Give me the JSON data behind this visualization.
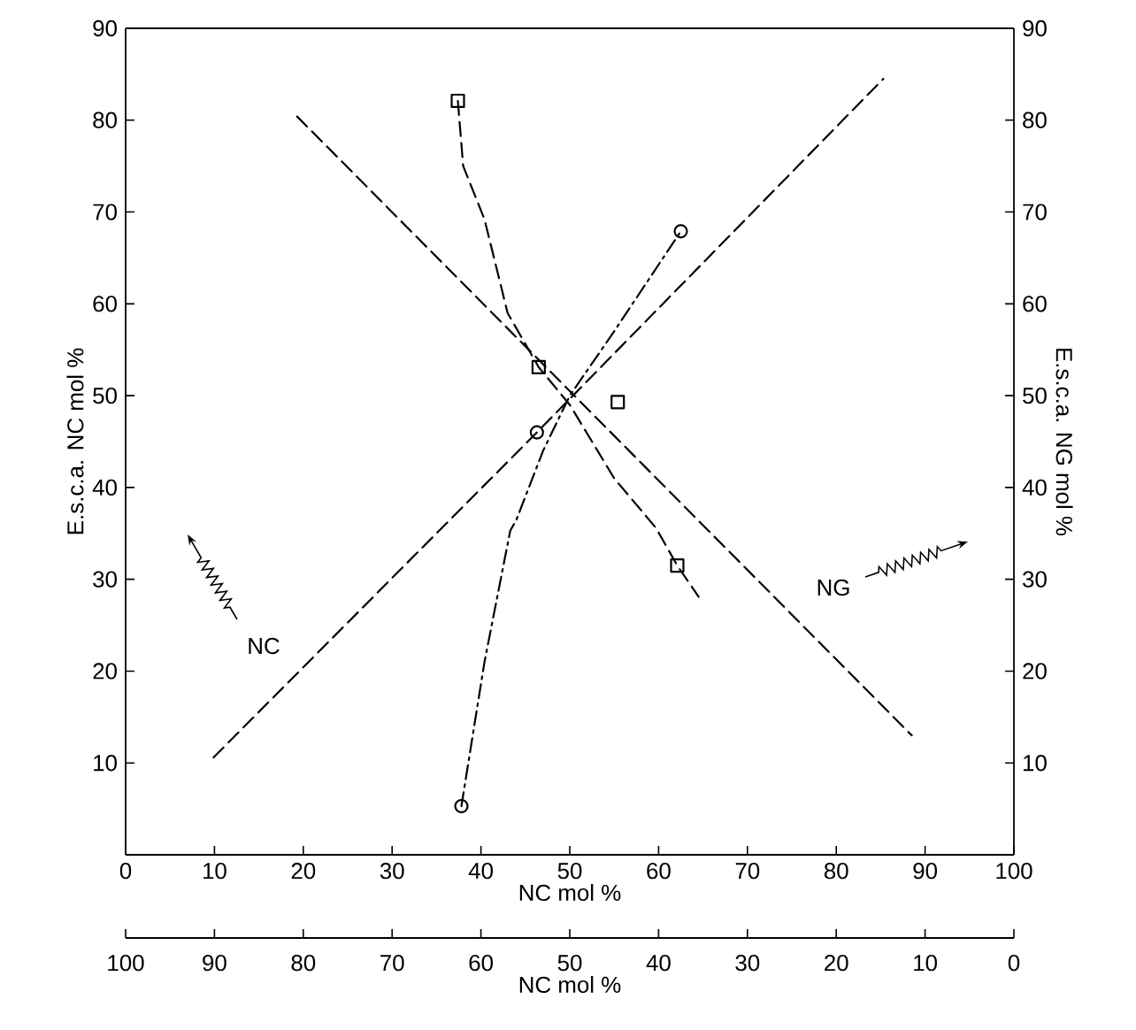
{
  "chart_data": {
    "type": "line",
    "xlabel": "NC mol %",
    "ylabel": "E.s.c.a. NC mol %",
    "y2label": "E.s.c.a. NG mol %",
    "x2label": "NC mol %",
    "xlim": [
      0,
      100
    ],
    "xticks": [
      0,
      10,
      20,
      30,
      40,
      50,
      60,
      70,
      80,
      90,
      100
    ],
    "x2lim": [
      100,
      0
    ],
    "x2ticks": [
      100,
      90,
      80,
      70,
      60,
      50,
      40,
      30,
      20,
      10,
      0
    ],
    "ylim": [
      0,
      90
    ],
    "yticks": [
      10,
      20,
      30,
      40,
      50,
      60,
      70,
      80,
      90
    ],
    "y2lim": [
      0,
      90
    ],
    "y2ticks": [
      10,
      20,
      30,
      40,
      50,
      60,
      70,
      80,
      90
    ],
    "annotations": [
      "NC",
      "NG"
    ],
    "series": [
      {
        "line_style": "dashed",
        "marker": "none",
        "color": "#000000",
        "x": [
          9.9,
          46.3,
          85.3
        ],
        "values": [
          10.6,
          46.0,
          84.5
        ]
      },
      {
        "line_style": "dashed",
        "marker": "none",
        "color": "#000000",
        "x": [
          19.3,
          88.5
        ],
        "values": [
          80.4,
          13.0
        ]
      },
      {
        "line_style": "dashdot",
        "marker": "none",
        "color": "#000000",
        "x": [
          37.8,
          40.4,
          43.3,
          44.0,
          47.0,
          50.0,
          55.0,
          62.5
        ],
        "values": [
          5.3,
          21.0,
          35.3,
          36.5,
          44.0,
          50.0,
          57.0,
          67.9
        ]
      },
      {
        "type": "scatter",
        "marker": "circle",
        "color": "#000000",
        "x": [
          37.8,
          46.3,
          62.5
        ],
        "values": [
          5.3,
          46.0,
          67.9
        ]
      },
      {
        "line_style": "dashed",
        "marker": "none",
        "color": "#000000",
        "x": [
          37.4,
          38.0,
          40.4,
          43.0,
          46.5,
          50.0,
          55.0,
          59.7,
          62.1,
          64.5
        ],
        "values": [
          82.1,
          75.0,
          69.2,
          59.0,
          53.1,
          49.0,
          41.0,
          35.6,
          31.5,
          28.1
        ]
      },
      {
        "type": "scatter",
        "marker": "square",
        "color": "#000000",
        "x": [
          37.4,
          46.5,
          55.4,
          62.1
        ],
        "values": [
          82.1,
          53.1,
          49.3,
          31.5
        ]
      }
    ]
  }
}
